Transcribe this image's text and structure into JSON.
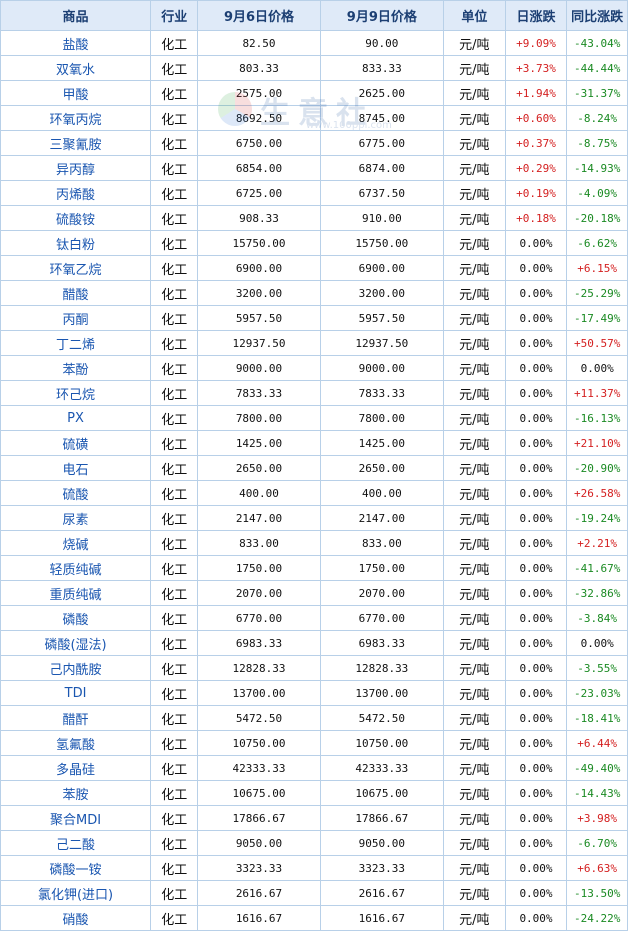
{
  "table": {
    "headers": [
      "商品",
      "行业",
      "9月6日价格",
      "9月9日价格",
      "单位",
      "日涨跌",
      "同比涨跌"
    ],
    "rows": [
      {
        "name": "盐酸",
        "industry": "化工",
        "price_prev": "82.50",
        "price_curr": "90.00",
        "unit": "元/吨",
        "daily": "+9.09%",
        "yoy": "-43.04%"
      },
      {
        "name": "双氧水",
        "industry": "化工",
        "price_prev": "803.33",
        "price_curr": "833.33",
        "unit": "元/吨",
        "daily": "+3.73%",
        "yoy": "-44.44%"
      },
      {
        "name": "甲酸",
        "industry": "化工",
        "price_prev": "2575.00",
        "price_curr": "2625.00",
        "unit": "元/吨",
        "daily": "+1.94%",
        "yoy": "-31.37%"
      },
      {
        "name": "环氧丙烷",
        "industry": "化工",
        "price_prev": "8692.50",
        "price_curr": "8745.00",
        "unit": "元/吨",
        "daily": "+0.60%",
        "yoy": "-8.24%"
      },
      {
        "name": "三聚氰胺",
        "industry": "化工",
        "price_prev": "6750.00",
        "price_curr": "6775.00",
        "unit": "元/吨",
        "daily": "+0.37%",
        "yoy": "-8.75%"
      },
      {
        "name": "异丙醇",
        "industry": "化工",
        "price_prev": "6854.00",
        "price_curr": "6874.00",
        "unit": "元/吨",
        "daily": "+0.29%",
        "yoy": "-14.93%"
      },
      {
        "name": "丙烯酸",
        "industry": "化工",
        "price_prev": "6725.00",
        "price_curr": "6737.50",
        "unit": "元/吨",
        "daily": "+0.19%",
        "yoy": "-4.09%"
      },
      {
        "name": "硫酸铵",
        "industry": "化工",
        "price_prev": "908.33",
        "price_curr": "910.00",
        "unit": "元/吨",
        "daily": "+0.18%",
        "yoy": "-20.18%"
      },
      {
        "name": "钛白粉",
        "industry": "化工",
        "price_prev": "15750.00",
        "price_curr": "15750.00",
        "unit": "元/吨",
        "daily": "0.00%",
        "yoy": "-6.62%"
      },
      {
        "name": "环氧乙烷",
        "industry": "化工",
        "price_prev": "6900.00",
        "price_curr": "6900.00",
        "unit": "元/吨",
        "daily": "0.00%",
        "yoy": "+6.15%"
      },
      {
        "name": "醋酸",
        "industry": "化工",
        "price_prev": "3200.00",
        "price_curr": "3200.00",
        "unit": "元/吨",
        "daily": "0.00%",
        "yoy": "-25.29%"
      },
      {
        "name": "丙酮",
        "industry": "化工",
        "price_prev": "5957.50",
        "price_curr": "5957.50",
        "unit": "元/吨",
        "daily": "0.00%",
        "yoy": "-17.49%"
      },
      {
        "name": "丁二烯",
        "industry": "化工",
        "price_prev": "12937.50",
        "price_curr": "12937.50",
        "unit": "元/吨",
        "daily": "0.00%",
        "yoy": "+50.57%"
      },
      {
        "name": "苯酚",
        "industry": "化工",
        "price_prev": "9000.00",
        "price_curr": "9000.00",
        "unit": "元/吨",
        "daily": "0.00%",
        "yoy": "0.00%"
      },
      {
        "name": "环己烷",
        "industry": "化工",
        "price_prev": "7833.33",
        "price_curr": "7833.33",
        "unit": "元/吨",
        "daily": "0.00%",
        "yoy": "+11.37%"
      },
      {
        "name": "PX",
        "industry": "化工",
        "price_prev": "7800.00",
        "price_curr": "7800.00",
        "unit": "元/吨",
        "daily": "0.00%",
        "yoy": "-16.13%"
      },
      {
        "name": "硫磺",
        "industry": "化工",
        "price_prev": "1425.00",
        "price_curr": "1425.00",
        "unit": "元/吨",
        "daily": "0.00%",
        "yoy": "+21.10%"
      },
      {
        "name": "电石",
        "industry": "化工",
        "price_prev": "2650.00",
        "price_curr": "2650.00",
        "unit": "元/吨",
        "daily": "0.00%",
        "yoy": "-20.90%"
      },
      {
        "name": "硫酸",
        "industry": "化工",
        "price_prev": "400.00",
        "price_curr": "400.00",
        "unit": "元/吨",
        "daily": "0.00%",
        "yoy": "+26.58%"
      },
      {
        "name": "尿素",
        "industry": "化工",
        "price_prev": "2147.00",
        "price_curr": "2147.00",
        "unit": "元/吨",
        "daily": "0.00%",
        "yoy": "-19.24%"
      },
      {
        "name": "烧碱",
        "industry": "化工",
        "price_prev": "833.00",
        "price_curr": "833.00",
        "unit": "元/吨",
        "daily": "0.00%",
        "yoy": "+2.21%"
      },
      {
        "name": "轻质纯碱",
        "industry": "化工",
        "price_prev": "1750.00",
        "price_curr": "1750.00",
        "unit": "元/吨",
        "daily": "0.00%",
        "yoy": "-41.67%"
      },
      {
        "name": "重质纯碱",
        "industry": "化工",
        "price_prev": "2070.00",
        "price_curr": "2070.00",
        "unit": "元/吨",
        "daily": "0.00%",
        "yoy": "-32.86%"
      },
      {
        "name": "磷酸",
        "industry": "化工",
        "price_prev": "6770.00",
        "price_curr": "6770.00",
        "unit": "元/吨",
        "daily": "0.00%",
        "yoy": "-3.84%"
      },
      {
        "name": "磷酸(湿法)",
        "industry": "化工",
        "price_prev": "6983.33",
        "price_curr": "6983.33",
        "unit": "元/吨",
        "daily": "0.00%",
        "yoy": "0.00%"
      },
      {
        "name": "己内酰胺",
        "industry": "化工",
        "price_prev": "12828.33",
        "price_curr": "12828.33",
        "unit": "元/吨",
        "daily": "0.00%",
        "yoy": "-3.55%"
      },
      {
        "name": "TDI",
        "industry": "化工",
        "price_prev": "13700.00",
        "price_curr": "13700.00",
        "unit": "元/吨",
        "daily": "0.00%",
        "yoy": "-23.03%"
      },
      {
        "name": "醋酐",
        "industry": "化工",
        "price_prev": "5472.50",
        "price_curr": "5472.50",
        "unit": "元/吨",
        "daily": "0.00%",
        "yoy": "-18.41%"
      },
      {
        "name": "氢氟酸",
        "industry": "化工",
        "price_prev": "10750.00",
        "price_curr": "10750.00",
        "unit": "元/吨",
        "daily": "0.00%",
        "yoy": "+6.44%"
      },
      {
        "name": "多晶硅",
        "industry": "化工",
        "price_prev": "42333.33",
        "price_curr": "42333.33",
        "unit": "元/吨",
        "daily": "0.00%",
        "yoy": "-49.40%"
      },
      {
        "name": "苯胺",
        "industry": "化工",
        "price_prev": "10675.00",
        "price_curr": "10675.00",
        "unit": "元/吨",
        "daily": "0.00%",
        "yoy": "-14.43%"
      },
      {
        "name": "聚合MDI",
        "industry": "化工",
        "price_prev": "17866.67",
        "price_curr": "17866.67",
        "unit": "元/吨",
        "daily": "0.00%",
        "yoy": "+3.98%"
      },
      {
        "name": "己二酸",
        "industry": "化工",
        "price_prev": "9050.00",
        "price_curr": "9050.00",
        "unit": "元/吨",
        "daily": "0.00%",
        "yoy": "-6.70%"
      },
      {
        "name": "磷酸一铵",
        "industry": "化工",
        "price_prev": "3323.33",
        "price_curr": "3323.33",
        "unit": "元/吨",
        "daily": "0.00%",
        "yoy": "+6.63%"
      },
      {
        "name": "氯化钾(进口)",
        "industry": "化工",
        "price_prev": "2616.67",
        "price_curr": "2616.67",
        "unit": "元/吨",
        "daily": "0.00%",
        "yoy": "-13.50%"
      },
      {
        "name": "硝酸",
        "industry": "化工",
        "price_prev": "1616.67",
        "price_curr": "1616.67",
        "unit": "元/吨",
        "daily": "0.00%",
        "yoy": "-24.22%"
      }
    ]
  },
  "watermark": {
    "text": "生意社",
    "url": "www.100ppi.com",
    "icon": "logo-icon"
  },
  "colors": {
    "header_bg": "#dfeaf8",
    "border": "#b8d0e8",
    "name_text": "#1a56b0",
    "up": "#d42020",
    "down": "#1a8a22"
  }
}
